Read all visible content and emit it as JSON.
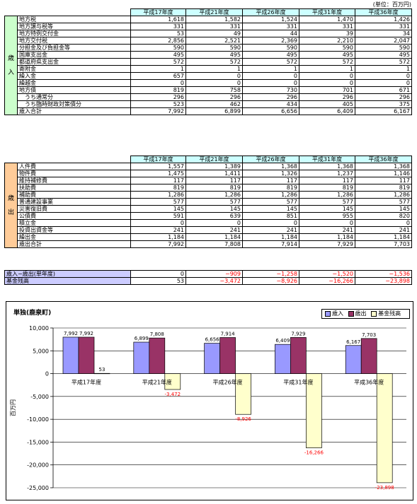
{
  "unit_label": "(単位：百万円)",
  "years": [
    "平成17年度",
    "平成21年度",
    "平成26年度",
    "平成31年度",
    "平成36年度"
  ],
  "revenue": {
    "section_label": "歳入",
    "rows": [
      {
        "label": "地方税",
        "values": [
          "1,618",
          "1,582",
          "1,524",
          "1,470",
          "1,426"
        ]
      },
      {
        "label": "地方譲与税等",
        "values": [
          "331",
          "331",
          "331",
          "331",
          "331"
        ]
      },
      {
        "label": "地方特例交付金",
        "values": [
          "53",
          "49",
          "44",
          "39",
          "34"
        ]
      },
      {
        "label": "地方交付税",
        "values": [
          "2,856",
          "2,521",
          "2,369",
          "2,210",
          "2,047"
        ]
      },
      {
        "label": "分担金及び負担金等",
        "values": [
          "590",
          "590",
          "590",
          "590",
          "590"
        ]
      },
      {
        "label": "国庫支出金",
        "values": [
          "495",
          "495",
          "495",
          "495",
          "495"
        ]
      },
      {
        "label": "都道府県支出金",
        "values": [
          "572",
          "572",
          "572",
          "572",
          "572"
        ]
      },
      {
        "label": "寄附金",
        "values": [
          "1",
          "1",
          "1",
          "1",
          "1"
        ]
      },
      {
        "label": "繰入金",
        "values": [
          "657",
          "0",
          "0",
          "0",
          "0"
        ]
      },
      {
        "label": "繰越金",
        "values": [
          "0",
          "0",
          "0",
          "0",
          "0"
        ]
      },
      {
        "label": "地方債",
        "values": [
          "819",
          "758",
          "730",
          "701",
          "671"
        ]
      },
      {
        "label": "　うち通常分",
        "values": [
          "296",
          "296",
          "296",
          "296",
          "296"
        ]
      },
      {
        "label": "　うち臨時財政対策債分",
        "values": [
          "523",
          "462",
          "434",
          "405",
          "375"
        ]
      },
      {
        "label": "歳入合計",
        "values": [
          "7,992",
          "6,899",
          "6,656",
          "6,409",
          "6,167"
        ]
      }
    ]
  },
  "expenditure": {
    "section_label": "歳出",
    "rows": [
      {
        "label": "人件費",
        "values": [
          "1,557",
          "1,389",
          "1,368",
          "1,368",
          "1,368"
        ]
      },
      {
        "label": "物件費",
        "values": [
          "1,475",
          "1,411",
          "1,326",
          "1,237",
          "1,146"
        ]
      },
      {
        "label": "維持補修費",
        "values": [
          "117",
          "117",
          "117",
          "117",
          "117"
        ]
      },
      {
        "label": "扶助費",
        "values": [
          "819",
          "819",
          "819",
          "819",
          "819"
        ]
      },
      {
        "label": "補助費",
        "values": [
          "1,286",
          "1,286",
          "1,286",
          "1,286",
          "1,286"
        ]
      },
      {
        "label": "普通建設事業",
        "values": [
          "577",
          "577",
          "577",
          "577",
          "577"
        ]
      },
      {
        "label": "災害復旧費",
        "values": [
          "145",
          "145",
          "145",
          "145",
          "145"
        ]
      },
      {
        "label": "公債費",
        "values": [
          "591",
          "639",
          "851",
          "955",
          "820"
        ]
      },
      {
        "label": "積立金",
        "values": [
          "0",
          "0",
          "0",
          "0",
          "0"
        ]
      },
      {
        "label": "投資出資金等",
        "values": [
          "241",
          "241",
          "241",
          "241",
          "241"
        ]
      },
      {
        "label": "繰出金",
        "values": [
          "1,184",
          "1,184",
          "1,184",
          "1,184",
          "1,184"
        ]
      },
      {
        "label": "歳出合計",
        "values": [
          "7,992",
          "7,808",
          "7,914",
          "7,929",
          "7,703"
        ]
      }
    ]
  },
  "balance": {
    "rows": [
      {
        "label": "歳入−歳出(単年度)",
        "values": [
          "0",
          "−909",
          "−1,258",
          "−1,520",
          "−1,536"
        ]
      },
      {
        "label": "基金残高",
        "values": [
          "53",
          "−3,472",
          "−8,926",
          "−16,266",
          "−23,898"
        ]
      }
    ]
  },
  "colors": {
    "header_bg": "#ccffff",
    "revenue_section_bg": "#ccffcc",
    "expenditure_section_bg": "#ffcc99",
    "balance_label_bg": "#ccccff",
    "negative_text": "#ff0000",
    "series_revenue": "#9999ff",
    "series_expenditure": "#993366",
    "series_fund": "#ffffcc"
  },
  "chart_data": {
    "type": "bar",
    "title": "単独(鹿泉町)",
    "ylabel": "百万円",
    "categories": [
      "平成17年度",
      "平成21年度",
      "平成26年度",
      "平成31年度",
      "平成36年度"
    ],
    "series": [
      {
        "name": "歳入",
        "values": [
          7992,
          6899,
          6656,
          6409,
          6167
        ],
        "labels": [
          "7,992",
          "6,899",
          "6,656",
          "6,409",
          "6,167"
        ]
      },
      {
        "name": "歳出",
        "values": [
          7992,
          7808,
          7914,
          7929,
          7703
        ],
        "labels": [
          "7,992",
          "7,808",
          "7,914",
          "7,929",
          "7,703"
        ]
      },
      {
        "name": "基金残高",
        "values": [
          53,
          -3472,
          -8926,
          -16266,
          -23898
        ],
        "labels": [
          "53",
          "-3,472",
          "-8,926",
          "-16,266",
          "-23,898"
        ]
      }
    ],
    "ylim": [
      -25000,
      10000
    ],
    "yticks": [
      10000,
      5000,
      0,
      -5000,
      -10000,
      -15000,
      -20000,
      -25000
    ],
    "ytick_labels": [
      "10,000",
      "5,000",
      "0",
      "-5,000",
      "-10,000",
      "-15,000",
      "-20,000",
      "-25,000"
    ],
    "grid": true,
    "legend": "top-right"
  }
}
